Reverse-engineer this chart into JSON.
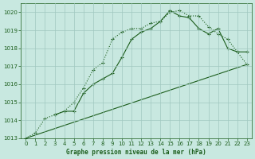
{
  "title": "Graphe pression niveau de la mer (hPa)",
  "background_color": "#c8e8e0",
  "plot_bg_color": "#c8e8e0",
  "grid_color": "#a0c8c0",
  "line_color": "#1a5c1a",
  "text_color": "#1a5c1a",
  "xlim": [
    -0.5,
    23.5
  ],
  "ylim": [
    1013,
    1020.5
  ],
  "yticks": [
    1013,
    1014,
    1015,
    1016,
    1017,
    1018,
    1019,
    1020
  ],
  "xticks": [
    0,
    1,
    2,
    3,
    4,
    5,
    6,
    7,
    8,
    9,
    10,
    11,
    12,
    13,
    14,
    15,
    16,
    17,
    18,
    19,
    20,
    21,
    22,
    23
  ],
  "line1_x": [
    0,
    1,
    2,
    3,
    4,
    5,
    6,
    7,
    8,
    9,
    10,
    11,
    12,
    13,
    14,
    15,
    16,
    17,
    18,
    19,
    20,
    21,
    22,
    23
  ],
  "line1_y": [
    1013.0,
    1013.3,
    1014.1,
    1014.3,
    1014.5,
    1015.0,
    1015.8,
    1016.8,
    1017.2,
    1018.5,
    1018.9,
    1019.1,
    1019.1,
    1019.4,
    1019.5,
    1020.0,
    1020.1,
    1019.8,
    1019.8,
    1019.2,
    1018.8,
    1018.5,
    1017.8,
    1017.1
  ],
  "line2_x": [
    3,
    4,
    5,
    6,
    7,
    8,
    9,
    10,
    11,
    12,
    13,
    14,
    15,
    16,
    17,
    18,
    19,
    20,
    21,
    22,
    23
  ],
  "line2_y": [
    1014.3,
    1014.5,
    1014.5,
    1015.5,
    1016.0,
    1016.3,
    1016.6,
    1017.5,
    1018.5,
    1018.9,
    1019.1,
    1019.5,
    1020.1,
    1019.8,
    1019.7,
    1019.1,
    1018.8,
    1019.1,
    1018.0,
    1017.8,
    1017.8
  ],
  "line3_x": [
    0,
    23
  ],
  "line3_y": [
    1013.0,
    1017.1
  ]
}
